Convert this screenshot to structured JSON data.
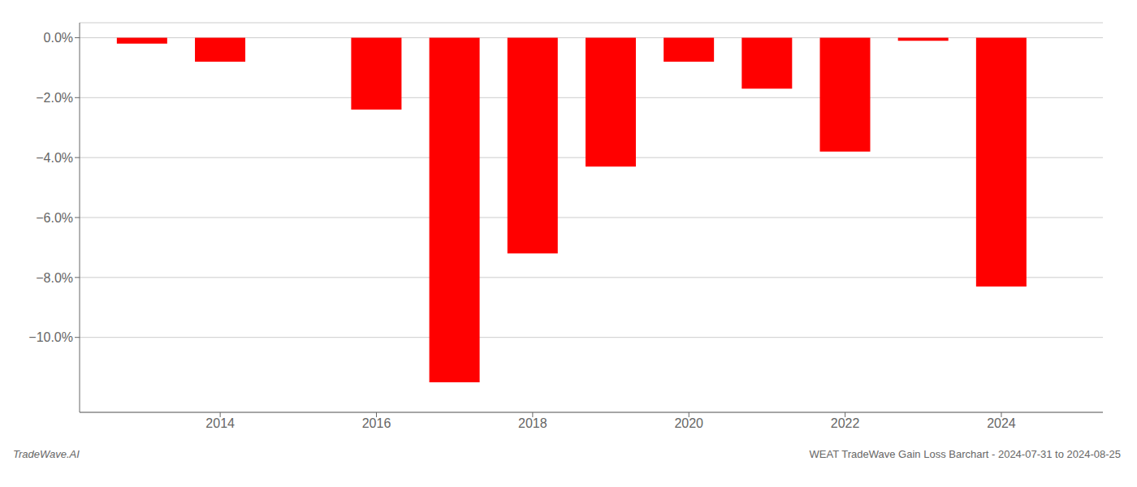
{
  "chart_data": {
    "type": "bar",
    "x": [
      2013,
      2014,
      2015,
      2016,
      2017,
      2018,
      2019,
      2020,
      2021,
      2022,
      2023,
      2024
    ],
    "values": [
      -0.002,
      -0.008,
      0.0,
      -0.024,
      -0.115,
      -0.072,
      -0.043,
      -0.008,
      -0.017,
      -0.038,
      -0.001,
      -0.083
    ],
    "color": "#ff0000",
    "xlim": [
      2012.2,
      2025.3
    ],
    "xticks": [
      2014,
      2016,
      2018,
      2020,
      2022,
      2024
    ],
    "ylim": [
      -0.125,
      0.005
    ],
    "yticks": [
      {
        "value": 0.0,
        "label": "0.0%"
      },
      {
        "value": -0.02,
        "label": "−2.0%"
      },
      {
        "value": -0.04,
        "label": "−4.0%"
      },
      {
        "value": -0.06,
        "label": "−6.0%"
      },
      {
        "value": -0.08,
        "label": "−8.0%"
      },
      {
        "value": -0.1,
        "label": "−10.0%"
      }
    ],
    "grid": true,
    "annotations": [
      "TradeWave.AI",
      "WEAT TradeWave Gain Loss Barchart - 2024-07-31 to 2024-08-25"
    ]
  }
}
